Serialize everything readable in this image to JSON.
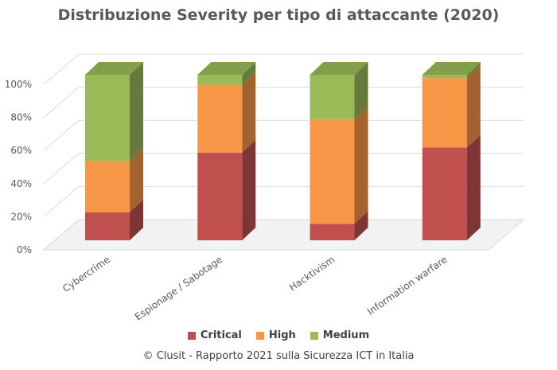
{
  "chart_data": {
    "type": "bar",
    "stacked": true,
    "three_d": true,
    "title": "Distribuzione Severity per tipo di attaccante (2020)",
    "categories": [
      "Cybercrime",
      "Espionage / Sabotage",
      "Hacktivism",
      "Information warfare"
    ],
    "series": [
      {
        "name": "Critical",
        "color": "#c0504d",
        "values": [
          17,
          53,
          10,
          56
        ]
      },
      {
        "name": "High",
        "color": "#f79646",
        "values": [
          31,
          41,
          63,
          42
        ]
      },
      {
        "name": "Medium",
        "color": "#9bbb59",
        "values": [
          52,
          6,
          27,
          2
        ]
      }
    ],
    "y_ticks": [
      "0%",
      "20%",
      "40%",
      "60%",
      "80%",
      "100%"
    ],
    "ylim": [
      0,
      100
    ],
    "grid": true,
    "legend_position": "bottom"
  },
  "legend": {
    "critical": "Critical",
    "high": "High",
    "medium": "Medium",
    "critical_color": "#c0504d",
    "high_color": "#f79646",
    "medium_color": "#9bbb59"
  },
  "caption": "© Clusit - Rapporto 2021 sulla Sicurezza ICT in Italia"
}
